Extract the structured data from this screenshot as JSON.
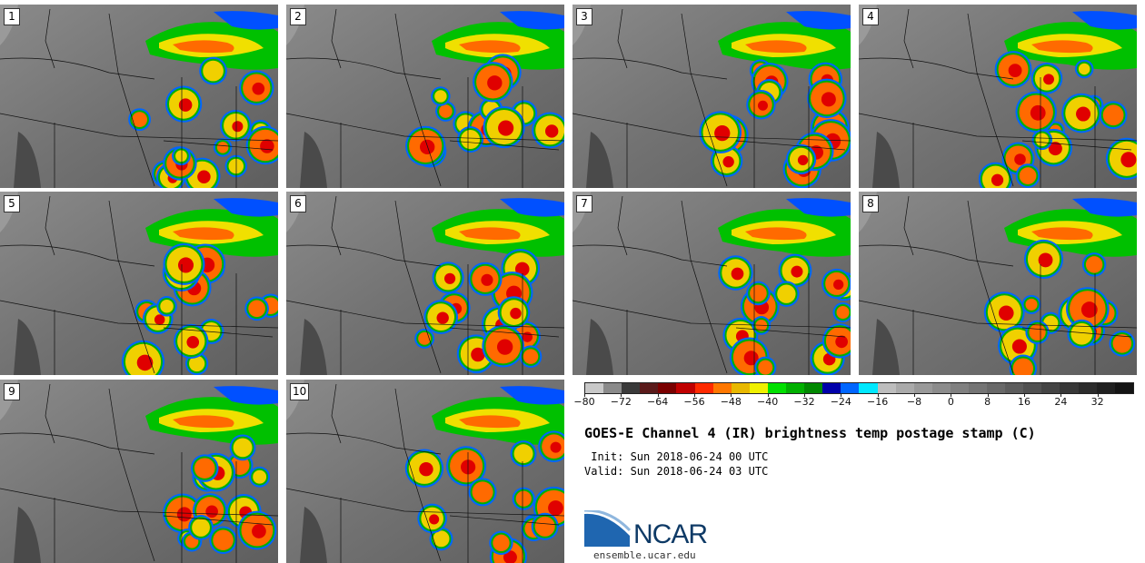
{
  "panels": [
    {
      "label": "1"
    },
    {
      "label": "2"
    },
    {
      "label": "3"
    },
    {
      "label": "4"
    },
    {
      "label": "5"
    },
    {
      "label": "6"
    },
    {
      "label": "7"
    },
    {
      "label": "8"
    },
    {
      "label": "9"
    },
    {
      "label": "10"
    }
  ],
  "colorbar": {
    "colors": [
      "#c8c8c8",
      "#8a8a8a",
      "#3a3a3a",
      "#5a1a1a",
      "#7a0000",
      "#c00000",
      "#ff2a00",
      "#ff7700",
      "#e8b800",
      "#f0f000",
      "#00e000",
      "#00b000",
      "#008800",
      "#0000aa",
      "#0066ff",
      "#00e8ff",
      "#bdbdbd",
      "#aaaaaa",
      "#999999",
      "#8c8c8c",
      "#808080",
      "#747474",
      "#686868",
      "#5c5c5c",
      "#505050",
      "#444444",
      "#383838",
      "#2c2c2c",
      "#202020",
      "#141414"
    ],
    "ticks": [
      "−80",
      "−72",
      "−64",
      "−56",
      "−48",
      "−40",
      "−32",
      "−24",
      "−16",
      "−8",
      "0",
      "8",
      "16",
      "24",
      "32"
    ]
  },
  "title": "GOES-E Channel 4 (IR) brightness temp postage stamp (C)",
  "init_line": " Init: Sun 2018-06-24 00 UTC",
  "valid_line": "Valid: Sun 2018-06-24 03 UTC",
  "logo_text": "NCAR",
  "site": "ensemble.ucar.edu"
}
